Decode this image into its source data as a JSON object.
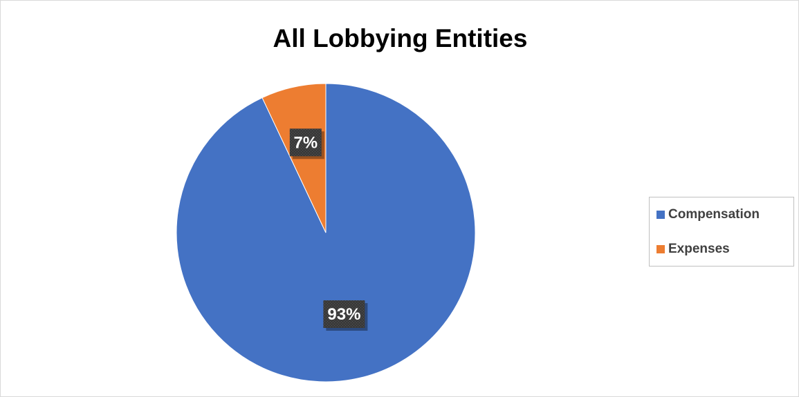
{
  "chart_data": {
    "type": "pie",
    "title": "All Lobbying Entities",
    "categories": [
      "Compensation",
      "Expenses"
    ],
    "values": [
      93,
      7
    ],
    "data_labels": [
      "93%",
      "7%"
    ],
    "colors": [
      "#4472C4",
      "#ED7D31"
    ],
    "legend": {
      "position": "right",
      "entries": [
        "Compensation",
        "Expenses"
      ]
    }
  }
}
